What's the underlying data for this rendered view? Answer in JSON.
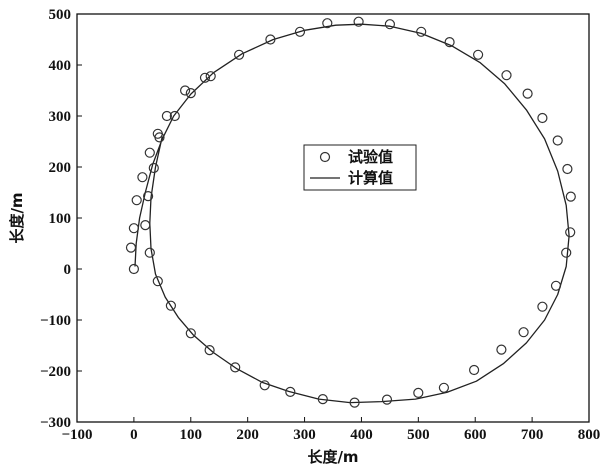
{
  "chart_data": {
    "type": "scatter",
    "xlabel": "长度/m",
    "ylabel": "长度/m",
    "xlim": [
      -100,
      800
    ],
    "ylim": [
      -300,
      500
    ],
    "xticks": [
      -100,
      0,
      100,
      200,
      300,
      400,
      500,
      600,
      700,
      800
    ],
    "yticks": [
      -300,
      -200,
      -100,
      0,
      100,
      200,
      300,
      400,
      500
    ],
    "xtick_labels": [
      "−100",
      "0",
      "100",
      "200",
      "300",
      "400",
      "500",
      "600",
      "700",
      "800"
    ],
    "ytick_labels": [
      "−300",
      "−200",
      "−100",
      "0",
      "100",
      "200",
      "300",
      "400",
      "500"
    ],
    "grid": false,
    "legend_position": "center",
    "series": [
      {
        "name": "试验值",
        "marker": "circle",
        "color": "#333333",
        "points": [
          [
            0,
            0
          ],
          [
            -5,
            42
          ],
          [
            0,
            80
          ],
          [
            5,
            135
          ],
          [
            15,
            180
          ],
          [
            28,
            228
          ],
          [
            42,
            265
          ],
          [
            58,
            300
          ],
          [
            72,
            300
          ],
          [
            100,
            345
          ],
          [
            135,
            378
          ],
          [
            185,
            420
          ],
          [
            240,
            450
          ],
          [
            292,
            465
          ],
          [
            340,
            482
          ],
          [
            395,
            485
          ],
          [
            450,
            480
          ],
          [
            505,
            465
          ],
          [
            555,
            445
          ],
          [
            605,
            420
          ],
          [
            655,
            380
          ],
          [
            692,
            344
          ],
          [
            718,
            296
          ],
          [
            745,
            252
          ],
          [
            762,
            196
          ],
          [
            768,
            142
          ],
          [
            767,
            72
          ],
          [
            760,
            32
          ],
          [
            742,
            -33
          ],
          [
            718,
            -74
          ],
          [
            685,
            -124
          ],
          [
            646,
            -158
          ],
          [
            598,
            -198
          ],
          [
            545,
            -233
          ],
          [
            500,
            -243
          ],
          [
            445,
            -256
          ],
          [
            388,
            -262
          ],
          [
            332,
            -255
          ],
          [
            275,
            -241
          ],
          [
            230,
            -228
          ],
          [
            178,
            -193
          ],
          [
            133,
            -159
          ],
          [
            100,
            -126
          ],
          [
            65,
            -72
          ],
          [
            42,
            -24
          ],
          [
            28,
            32
          ],
          [
            20,
            86
          ],
          [
            25,
            143
          ],
          [
            35,
            198
          ],
          [
            45,
            258
          ],
          [
            90,
            350
          ],
          [
            125,
            375
          ]
        ]
      },
      {
        "name": "计算值",
        "marker": "line",
        "color": "#222222",
        "points": [
          [
            2,
            5
          ],
          [
            4,
            50
          ],
          [
            10,
            100
          ],
          [
            20,
            150
          ],
          [
            33,
            205
          ],
          [
            50,
            255
          ],
          [
            70,
            300
          ],
          [
            100,
            343
          ],
          [
            140,
            385
          ],
          [
            190,
            422
          ],
          [
            245,
            450
          ],
          [
            300,
            468
          ],
          [
            355,
            478
          ],
          [
            400,
            480
          ],
          [
            450,
            476
          ],
          [
            505,
            462
          ],
          [
            558,
            438
          ],
          [
            608,
            405
          ],
          [
            652,
            363
          ],
          [
            690,
            312
          ],
          [
            722,
            255
          ],
          [
            745,
            192
          ],
          [
            760,
            125
          ],
          [
            765,
            65
          ],
          [
            760,
            5
          ],
          [
            745,
            -50
          ],
          [
            722,
            -100
          ],
          [
            690,
            -145
          ],
          [
            650,
            -185
          ],
          [
            602,
            -220
          ],
          [
            550,
            -242
          ],
          [
            495,
            -255
          ],
          [
            435,
            -260
          ],
          [
            380,
            -262
          ],
          [
            325,
            -255
          ],
          [
            272,
            -240
          ],
          [
            225,
            -222
          ],
          [
            180,
            -195
          ],
          [
            140,
            -164
          ],
          [
            105,
            -130
          ],
          [
            78,
            -95
          ],
          [
            55,
            -55
          ],
          [
            38,
            -10
          ],
          [
            30,
            40
          ],
          [
            28,
            90
          ],
          [
            30,
            140
          ],
          [
            38,
            200
          ],
          [
            50,
            260
          ]
        ]
      }
    ]
  }
}
